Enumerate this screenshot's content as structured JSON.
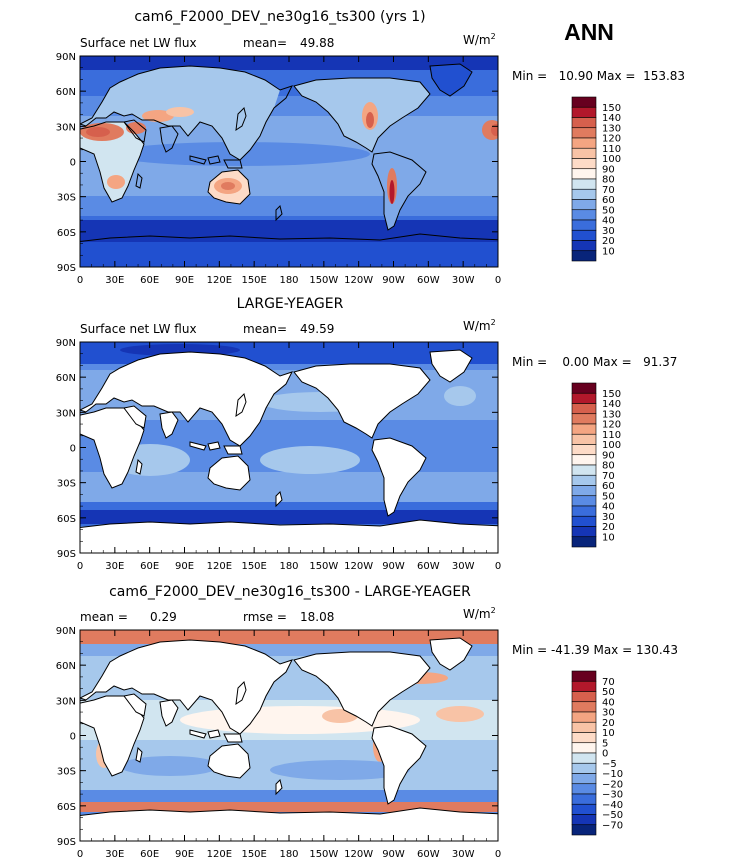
{
  "season": "ANN",
  "units_base": "W/m",
  "units_exp": "2",
  "lat_labels": [
    "90N",
    "60N",
    "30N",
    "0",
    "30S",
    "60S",
    "90S"
  ],
  "lon_labels": [
    "0",
    "30E",
    "60E",
    "90E",
    "120E",
    "150E",
    "180",
    "150W",
    "120W",
    "90W",
    "60W",
    "30W",
    "0"
  ],
  "panels": [
    {
      "title": "cam6_F2000_DEV_ne30g16_ts300 (yrs 1)",
      "left_label": "Surface net LW flux",
      "stat_label": "mean=",
      "stat_value": "49.88",
      "range_text": "Min =   10.90 Max =  153.83",
      "cbar_labels": [
        "150",
        "140",
        "130",
        "120",
        "110",
        "100",
        "90",
        "80",
        "70",
        "60",
        "50",
        "40",
        "30",
        "20",
        "10"
      ],
      "cbar_colors": [
        "#67001f",
        "#b2182b",
        "#d6604d",
        "#e07b5f",
        "#f4a582",
        "#f8c3a6",
        "#fddbc7",
        "#fff5ee",
        "#d1e5f0",
        "#a6c8ec",
        "#7fa9e8",
        "#5a8be4",
        "#3a6ddc",
        "#2150d0",
        "#1535b5",
        "#08247a"
      ]
    },
    {
      "title": "LARGE-YEAGER",
      "left_label": "Surface net LW flux",
      "stat_label": "mean=",
      "stat_value": "49.59",
      "range_text": "Min =    0.00 Max =   91.37",
      "cbar_labels": [
        "150",
        "140",
        "130",
        "120",
        "110",
        "100",
        "90",
        "80",
        "70",
        "60",
        "50",
        "40",
        "30",
        "20",
        "10"
      ],
      "cbar_colors": [
        "#67001f",
        "#b2182b",
        "#d6604d",
        "#e07b5f",
        "#f4a582",
        "#f8c3a6",
        "#fddbc7",
        "#fff5ee",
        "#d1e5f0",
        "#a6c8ec",
        "#7fa9e8",
        "#5a8be4",
        "#3a6ddc",
        "#2150d0",
        "#1535b5",
        "#08247a"
      ]
    },
    {
      "title": "cam6_F2000_DEV_ne30g16_ts300 - LARGE-YEAGER",
      "left_label": "mean =",
      "left_value": "0.29",
      "stat_label": "rmse =",
      "stat_value": "18.08",
      "range_text": "Min = -41.39 Max = 130.43",
      "cbar_labels": [
        "70",
        "50",
        "40",
        "30",
        "20",
        "10",
        "5",
        "0",
        "−5",
        "−10",
        "−20",
        "−30",
        "−40",
        "−50",
        "−70"
      ],
      "cbar_colors": [
        "#67001f",
        "#b2182b",
        "#d6604d",
        "#e07b5f",
        "#f4a582",
        "#f8c3a6",
        "#fddbc7",
        "#fff5ee",
        "#d1e5f0",
        "#a6c8ec",
        "#7fa9e8",
        "#5a8be4",
        "#3a6ddc",
        "#2150d0",
        "#1535b5",
        "#08247a"
      ]
    }
  ]
}
